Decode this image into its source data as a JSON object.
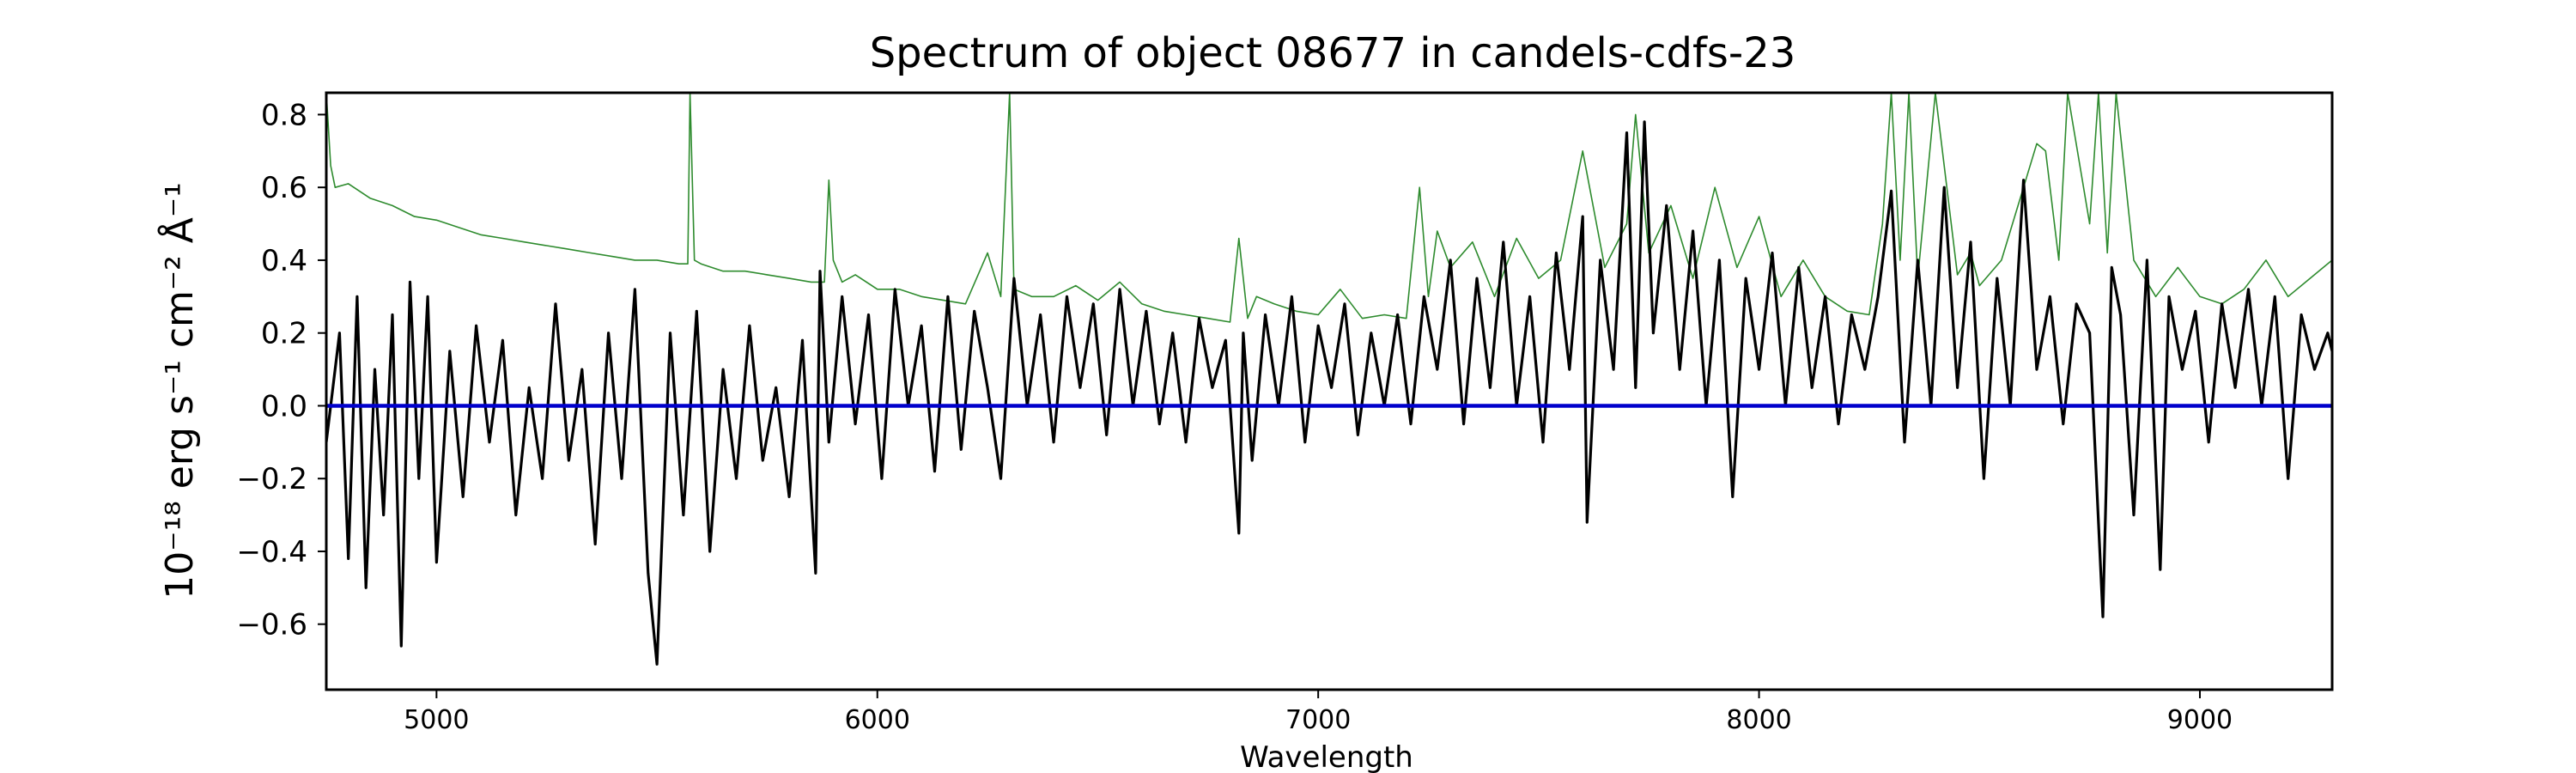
{
  "chart_data": {
    "type": "line",
    "title": "Spectrum of object 08677 in candels-cdfs-23",
    "xlabel": "Wavelength",
    "ylabel": "10⁻¹⁸ erg s⁻¹ cm⁻² Å⁻¹",
    "xlim": [
      4750,
      9300
    ],
    "ylim": [
      -0.78,
      0.86
    ],
    "xticks": [
      5000,
      6000,
      7000,
      8000,
      9000
    ],
    "yticks": [
      -0.6,
      -0.4,
      -0.2,
      0.0,
      0.2,
      0.4,
      0.6,
      0.8
    ],
    "grid": false,
    "legend": "none",
    "series": [
      {
        "role": "noise",
        "color": "#2e8b2e",
        "x": [
          4750,
          4760,
          4770,
          4800,
          4850,
          4900,
          4950,
          5000,
          5050,
          5100,
          5150,
          5200,
          5250,
          5300,
          5350,
          5400,
          5450,
          5500,
          5550,
          5570,
          5575,
          5585,
          5600,
          5650,
          5700,
          5750,
          5800,
          5850,
          5880,
          5890,
          5900,
          5920,
          5950,
          6000,
          6050,
          6100,
          6150,
          6200,
          6250,
          6280,
          6300,
          6310,
          6350,
          6400,
          6450,
          6500,
          6550,
          6600,
          6650,
          6700,
          6750,
          6800,
          6820,
          6830,
          6840,
          6860,
          6900,
          6950,
          7000,
          7050,
          7100,
          7150,
          7200,
          7230,
          7250,
          7270,
          7300,
          7350,
          7400,
          7450,
          7500,
          7550,
          7600,
          7650,
          7700,
          7720,
          7750,
          7800,
          7850,
          7900,
          7950,
          8000,
          8050,
          8100,
          8150,
          8200,
          8250,
          8280,
          8300,
          8320,
          8340,
          8360,
          8400,
          8450,
          8480,
          8500,
          8550,
          8600,
          8630,
          8650,
          8680,
          8700,
          8750,
          8770,
          8790,
          8810,
          8850,
          8900,
          8950,
          9000,
          9050,
          9100,
          9150,
          9200,
          9250,
          9300
        ],
        "y": [
          0.86,
          0.66,
          0.6,
          0.61,
          0.57,
          0.55,
          0.52,
          0.51,
          0.49,
          0.47,
          0.46,
          0.45,
          0.44,
          0.43,
          0.42,
          0.41,
          0.4,
          0.4,
          0.39,
          0.39,
          0.86,
          0.4,
          0.39,
          0.37,
          0.37,
          0.36,
          0.35,
          0.34,
          0.34,
          0.62,
          0.4,
          0.34,
          0.36,
          0.32,
          0.32,
          0.3,
          0.29,
          0.28,
          0.42,
          0.3,
          0.86,
          0.32,
          0.3,
          0.3,
          0.33,
          0.29,
          0.34,
          0.28,
          0.26,
          0.25,
          0.24,
          0.23,
          0.46,
          0.35,
          0.24,
          0.3,
          0.28,
          0.26,
          0.25,
          0.32,
          0.24,
          0.25,
          0.24,
          0.6,
          0.3,
          0.48,
          0.38,
          0.45,
          0.3,
          0.46,
          0.35,
          0.4,
          0.7,
          0.38,
          0.5,
          0.8,
          0.42,
          0.55,
          0.35,
          0.6,
          0.38,
          0.52,
          0.3,
          0.4,
          0.3,
          0.26,
          0.25,
          0.5,
          0.86,
          0.4,
          0.86,
          0.35,
          0.86,
          0.36,
          0.42,
          0.33,
          0.4,
          0.6,
          0.72,
          0.7,
          0.4,
          0.86,
          0.5,
          0.86,
          0.42,
          0.86,
          0.4,
          0.3,
          0.38,
          0.3,
          0.28,
          0.32,
          0.4,
          0.3,
          0.35,
          0.4
        ]
      },
      {
        "role": "flux",
        "color": "#000000",
        "x": [
          4750,
          4780,
          4800,
          4820,
          4840,
          4860,
          4880,
          4900,
          4920,
          4940,
          4960,
          4980,
          5000,
          5030,
          5060,
          5090,
          5120,
          5150,
          5180,
          5210,
          5240,
          5270,
          5300,
          5330,
          5360,
          5390,
          5420,
          5450,
          5480,
          5500,
          5530,
          5560,
          5590,
          5620,
          5650,
          5680,
          5710,
          5740,
          5770,
          5800,
          5830,
          5860,
          5870,
          5890,
          5920,
          5950,
          5980,
          6010,
          6040,
          6070,
          6100,
          6130,
          6160,
          6190,
          6220,
          6250,
          6280,
          6310,
          6340,
          6370,
          6400,
          6430,
          6460,
          6490,
          6520,
          6550,
          6580,
          6610,
          6640,
          6670,
          6700,
          6730,
          6760,
          6790,
          6820,
          6830,
          6850,
          6880,
          6910,
          6940,
          6970,
          7000,
          7030,
          7060,
          7090,
          7120,
          7150,
          7180,
          7210,
          7240,
          7270,
          7300,
          7330,
          7360,
          7390,
          7420,
          7450,
          7480,
          7510,
          7540,
          7570,
          7600,
          7610,
          7640,
          7670,
          7700,
          7720,
          7740,
          7760,
          7790,
          7820,
          7850,
          7880,
          7910,
          7940,
          7970,
          8000,
          8030,
          8060,
          8090,
          8120,
          8150,
          8180,
          8210,
          8240,
          8270,
          8300,
          8330,
          8360,
          8390,
          8420,
          8450,
          8480,
          8510,
          8540,
          8570,
          8600,
          8630,
          8660,
          8690,
          8720,
          8750,
          8780,
          8800,
          8820,
          8850,
          8880,
          8910,
          8930,
          8960,
          8990,
          9020,
          9050,
          9080,
          9110,
          9140,
          9170,
          9200,
          9230,
          9260,
          9290,
          9300
        ],
        "y": [
          -0.1,
          0.2,
          -0.42,
          0.3,
          -0.5,
          0.1,
          -0.3,
          0.25,
          -0.66,
          0.34,
          -0.2,
          0.3,
          -0.43,
          0.15,
          -0.25,
          0.22,
          -0.1,
          0.18,
          -0.3,
          0.05,
          -0.2,
          0.28,
          -0.15,
          0.1,
          -0.38,
          0.2,
          -0.2,
          0.32,
          -0.46,
          -0.71,
          0.2,
          -0.3,
          0.26,
          -0.4,
          0.1,
          -0.2,
          0.22,
          -0.15,
          0.05,
          -0.25,
          0.18,
          -0.46,
          0.37,
          -0.1,
          0.3,
          -0.05,
          0.25,
          -0.2,
          0.32,
          0.0,
          0.22,
          -0.18,
          0.3,
          -0.12,
          0.26,
          0.05,
          -0.2,
          0.35,
          0.0,
          0.25,
          -0.1,
          0.3,
          0.05,
          0.28,
          -0.08,
          0.32,
          0.0,
          0.26,
          -0.05,
          0.2,
          -0.1,
          0.24,
          0.05,
          0.18,
          -0.35,
          0.2,
          -0.15,
          0.25,
          0.0,
          0.3,
          -0.1,
          0.22,
          0.05,
          0.28,
          -0.08,
          0.2,
          0.0,
          0.25,
          -0.05,
          0.3,
          0.1,
          0.4,
          -0.05,
          0.35,
          0.05,
          0.45,
          0.0,
          0.3,
          -0.1,
          0.42,
          0.1,
          0.52,
          -0.32,
          0.4,
          0.1,
          0.75,
          0.05,
          0.78,
          0.2,
          0.55,
          0.1,
          0.48,
          0.0,
          0.4,
          -0.25,
          0.35,
          0.1,
          0.42,
          0.0,
          0.38,
          0.05,
          0.3,
          -0.05,
          0.25,
          0.1,
          0.3,
          0.59,
          -0.1,
          0.4,
          0.0,
          0.6,
          0.05,
          0.45,
          -0.2,
          0.35,
          0.0,
          0.62,
          0.1,
          0.3,
          -0.05,
          0.28,
          0.2,
          -0.58,
          0.38,
          0.25,
          -0.3,
          0.4,
          -0.45,
          0.3,
          0.1,
          0.26,
          -0.1,
          0.28,
          0.05,
          0.32,
          0.0,
          0.3,
          -0.2,
          0.25,
          0.1,
          0.2,
          0.15
        ]
      },
      {
        "role": "zero",
        "color": "#0000cc",
        "x": [
          4750,
          9300
        ],
        "y": [
          0,
          0
        ]
      }
    ]
  }
}
